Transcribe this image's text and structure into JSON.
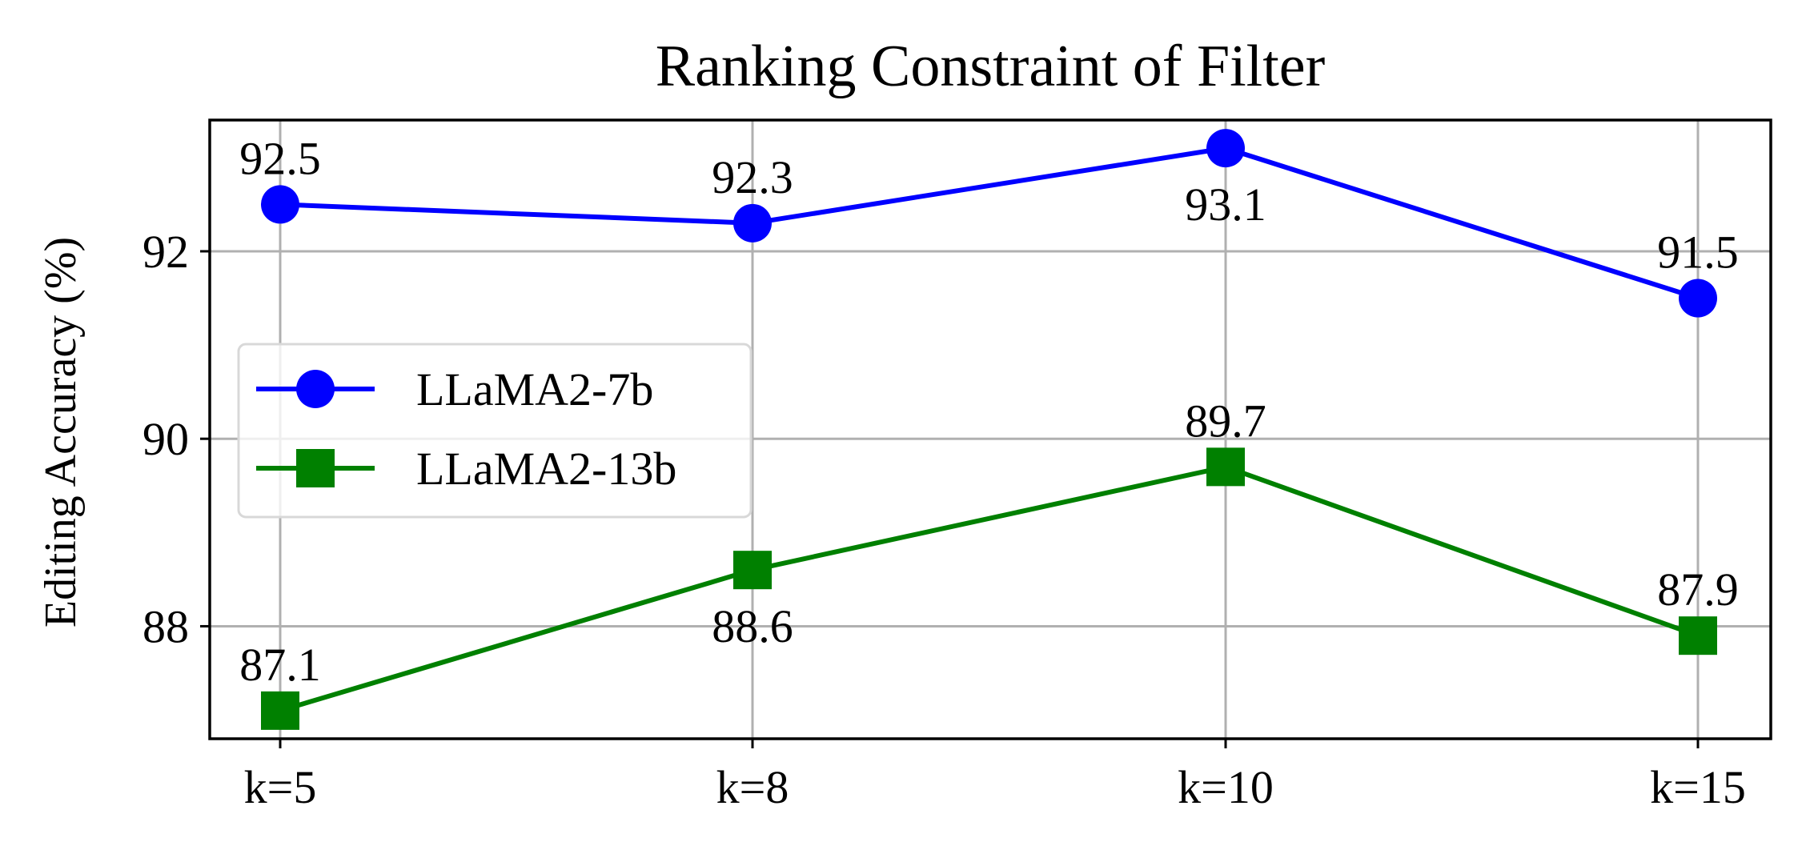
{
  "chart_data": {
    "type": "line",
    "title": "Ranking Constraint of Filter",
    "xlabel": "",
    "ylabel": "Editing Accuracy (%)",
    "categories": [
      "k=5",
      "k=8",
      "k=10",
      "k=15"
    ],
    "ylim": [
      86.8,
      93.4
    ],
    "yticks": [
      88,
      90,
      92
    ],
    "grid": true,
    "legend_position": "center-left",
    "series": [
      {
        "name": "LLaMA2-7b",
        "values": [
          92.5,
          92.3,
          93.1,
          91.5
        ],
        "labels": [
          "92.5",
          "92.3",
          "93.1",
          "91.5"
        ],
        "label_side": [
          "above",
          "above",
          "below",
          "above"
        ],
        "color": "#0000ff",
        "marker": "circle"
      },
      {
        "name": "LLaMA2-13b",
        "values": [
          87.1,
          88.6,
          89.7,
          87.9
        ],
        "labels": [
          "87.1",
          "88.6",
          "89.7",
          "87.9"
        ],
        "label_side": [
          "above",
          "below",
          "above",
          "above"
        ],
        "color": "#008000",
        "marker": "square"
      }
    ]
  }
}
